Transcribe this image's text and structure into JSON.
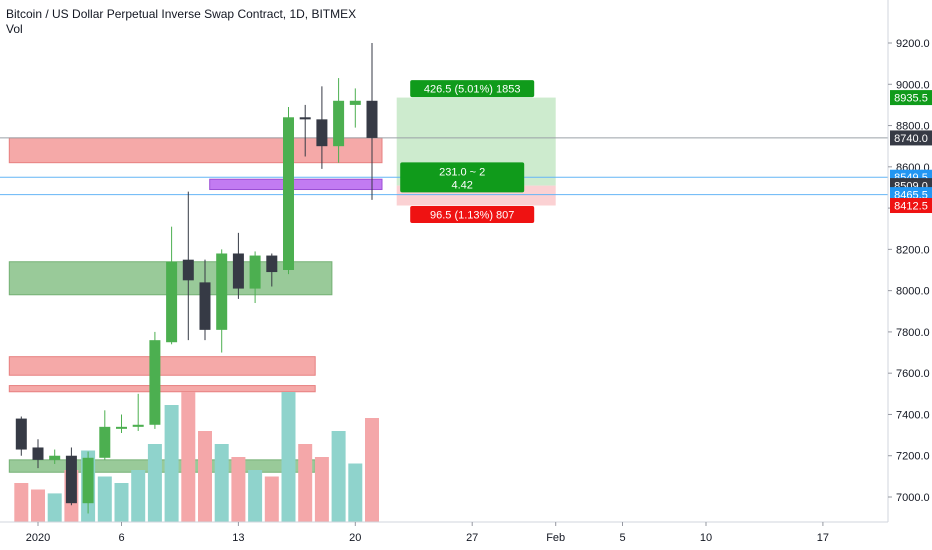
{
  "header": {
    "title": "Bitcoin / US Dollar Perpetual Inverse Swap Contract, 1D, BITMEX",
    "volume_label": "Vol"
  },
  "colors": {
    "up": "#4caf50",
    "down": "#363a45",
    "vol_up": "#8fd3cc",
    "vol_down": "#f4a7a9",
    "resistance": "#f4a09f",
    "support": "#8fc58f",
    "purple_zone": "#c27bf2",
    "target_zone": "#cdebce",
    "stop_zone": "#fbd1d3",
    "profit_tag": "#109b1b",
    "loss_tag": "#ef1212",
    "blue_tag": "#2196f3",
    "dark_tag": "#363a45"
  },
  "chart_data": {
    "type": "candlestick",
    "symbol": "Bitcoin / US Dollar Perpetual Inverse Swap Contract",
    "timeframe": "1D",
    "exchange": "BITMEX",
    "y_ticks": [
      7000,
      7200,
      7400,
      7600,
      7800,
      8000,
      8200,
      8400,
      8600,
      8800,
      9000,
      9200
    ],
    "x_ticks": [
      {
        "label": "2020",
        "date": "2020-01-01"
      },
      {
        "label": "6",
        "date": "2020-01-06"
      },
      {
        "label": "13",
        "date": "2020-01-13"
      },
      {
        "label": "20",
        "date": "2020-01-20"
      },
      {
        "label": "27",
        "date": "2020-01-27"
      },
      {
        "label": "Feb",
        "date": "2020-02-01"
      },
      {
        "label": "5",
        "date": "2020-02-05"
      },
      {
        "label": "10",
        "date": "2020-02-10"
      },
      {
        "label": "17",
        "date": "2020-02-17"
      }
    ],
    "candles": [
      {
        "date": "2019-12-31",
        "open": 7380,
        "high": 7390,
        "low": 7200,
        "close": 7230,
        "volume": 0.3
      },
      {
        "date": "2020-01-01",
        "open": 7240,
        "high": 7280,
        "low": 7140,
        "close": 7180,
        "volume": 0.25
      },
      {
        "date": "2020-01-02",
        "open": 7180,
        "high": 7230,
        "low": 7160,
        "close": 7200,
        "volume": 0.22
      },
      {
        "date": "2020-01-03",
        "open": 7200,
        "high": 7240,
        "low": 6960,
        "close": 6970,
        "volume": 0.4
      },
      {
        "date": "2020-01-04",
        "open": 6970,
        "high": 7220,
        "low": 6920,
        "close": 7190,
        "volume": 0.55
      },
      {
        "date": "2020-01-05",
        "open": 7190,
        "high": 7420,
        "low": 7180,
        "close": 7340,
        "volume": 0.35
      },
      {
        "date": "2020-01-06",
        "open": 7340,
        "high": 7400,
        "low": 7310,
        "close": 7340,
        "volume": 0.3
      },
      {
        "date": "2020-01-07",
        "open": 7340,
        "high": 7500,
        "low": 7320,
        "close": 7350,
        "volume": 0.4
      },
      {
        "date": "2020-01-08",
        "open": 7350,
        "high": 7800,
        "low": 7330,
        "close": 7760,
        "volume": 0.6
      },
      {
        "date": "2020-01-09",
        "open": 7750,
        "high": 8310,
        "low": 7740,
        "close": 8140,
        "volume": 0.9
      },
      {
        "date": "2020-01-10",
        "open": 8150,
        "high": 8480,
        "low": 7760,
        "close": 8050,
        "volume": 1.0
      },
      {
        "date": "2020-01-11",
        "open": 8040,
        "high": 8150,
        "low": 7760,
        "close": 7810,
        "volume": 0.7
      },
      {
        "date": "2020-01-12",
        "open": 7810,
        "high": 8200,
        "low": 7700,
        "close": 8180,
        "volume": 0.6
      },
      {
        "date": "2020-01-13",
        "open": 8180,
        "high": 8280,
        "low": 7960,
        "close": 8010,
        "volume": 0.5
      },
      {
        "date": "2020-01-14",
        "open": 8010,
        "high": 8190,
        "low": 7940,
        "close": 8170,
        "volume": 0.4
      },
      {
        "date": "2020-01-15",
        "open": 8170,
        "high": 8180,
        "low": 8020,
        "close": 8090,
        "volume": 0.35
      },
      {
        "date": "2020-01-16",
        "open": 8100,
        "high": 8890,
        "low": 8080,
        "close": 8840,
        "volume": 1.0
      },
      {
        "date": "2020-01-17",
        "open": 8840,
        "high": 8900,
        "low": 8650,
        "close": 8830,
        "volume": 0.6
      },
      {
        "date": "2020-01-18",
        "open": 8830,
        "high": 8990,
        "low": 8590,
        "close": 8700,
        "volume": 0.5
      },
      {
        "date": "2020-01-19",
        "open": 8700,
        "high": 9030,
        "low": 8620,
        "close": 8920,
        "volume": 0.7
      },
      {
        "date": "2020-01-20",
        "open": 8900,
        "high": 8980,
        "low": 8790,
        "close": 8920,
        "volume": 0.45
      },
      {
        "date": "2020-01-21",
        "open": 8920,
        "high": 9200,
        "low": 8440,
        "close": 8740,
        "volume": 0.8
      }
    ],
    "zones": [
      {
        "kind": "resistance",
        "from_date": "2019-12-31",
        "to_date": "2020-01-21",
        "low": 8620,
        "high": 8740
      },
      {
        "kind": "purple",
        "from_date": "2020-01-12",
        "to_date": "2020-01-21",
        "low": 8490,
        "high": 8540
      },
      {
        "kind": "support",
        "from_date": "2019-12-31",
        "to_date": "2020-01-18",
        "low": 7980,
        "high": 8140
      },
      {
        "kind": "resistance",
        "from_date": "2019-12-31",
        "to_date": "2020-01-17",
        "low": 7590,
        "high": 7680
      },
      {
        "kind": "resistance",
        "from_date": "2019-12-31",
        "to_date": "2020-01-17",
        "low": 7510,
        "high": 7540
      },
      {
        "kind": "support",
        "from_date": "2019-12-31",
        "to_date": "2020-01-17",
        "low": 7120,
        "high": 7180
      }
    ],
    "position": {
      "type": "long",
      "entry": 8509.0,
      "target": 8935.5,
      "stop": 8412.5,
      "from_date": "2020-01-22",
      "to_date": "2020-02-01",
      "profit_label": "426.5 (5.01%) 1853",
      "center_label_line1": "231.0 ~ 2",
      "center_label_line2": "4.42",
      "loss_label": "96.5 (1.13%) 807"
    },
    "h_lines": [
      {
        "price": 8740.0,
        "color": "#9aa0a6"
      },
      {
        "price": 8549.5,
        "color": "#64b5f6"
      },
      {
        "price": 8465.5,
        "color": "#64b5f6"
      }
    ],
    "price_tags": [
      {
        "price": 8935.5,
        "label": "8935.5",
        "color_key": "profit_tag"
      },
      {
        "price": 8740.0,
        "label": "8740.0",
        "color_key": "dark_tag"
      },
      {
        "price": 8549.5,
        "label": "8549.5",
        "color_key": "blue_tag"
      },
      {
        "price": 8509.0,
        "label": "8509.0",
        "color_key": "dark_tag"
      },
      {
        "price": 8465.5,
        "label": "8465.5",
        "color_key": "blue_tag"
      },
      {
        "price": 8412.5,
        "label": "8412.5",
        "color_key": "loss_tag"
      }
    ]
  }
}
